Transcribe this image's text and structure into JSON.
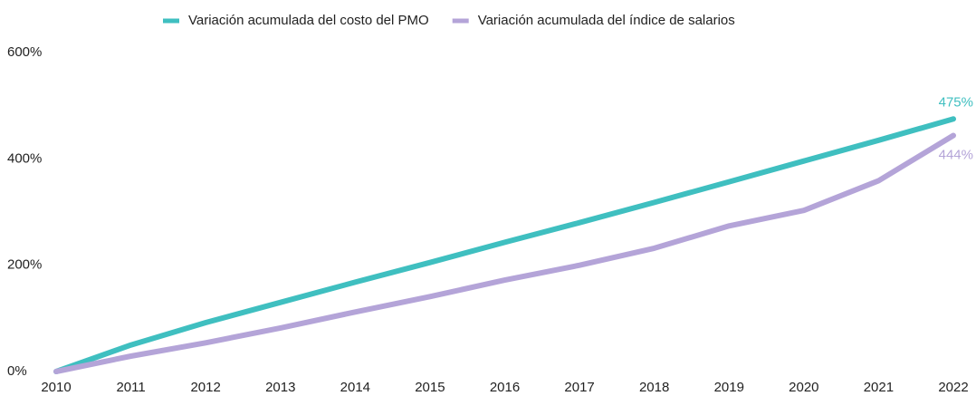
{
  "chart_data": {
    "type": "line",
    "x": [
      2010,
      2011,
      2012,
      2013,
      2014,
      2015,
      2016,
      2017,
      2018,
      2019,
      2020,
      2021,
      2022
    ],
    "xlim": [
      2010,
      2022
    ],
    "xticks": [
      2010,
      2011,
      2012,
      2013,
      2014,
      2015,
      2016,
      2017,
      2018,
      2019,
      2020,
      2021,
      2022
    ],
    "ylim": [
      0,
      600
    ],
    "yticks": [
      {
        "value": 0,
        "label": "0%"
      },
      {
        "value": 200,
        "label": "200%"
      },
      {
        "value": 400,
        "label": "400%"
      },
      {
        "value": 600,
        "label": "600%"
      }
    ],
    "grid": false,
    "legend": "top",
    "series": [
      {
        "name": "Variación acumulada del costo del PMO",
        "color": "#3fbfc0",
        "values": [
          0,
          50,
          92,
          130,
          168,
          205,
          243,
          280,
          318,
          357,
          396,
          435,
          475
        ],
        "value_labels": [
          null,
          null,
          null,
          null,
          null,
          null,
          null,
          null,
          null,
          null,
          null,
          null,
          "475%"
        ]
      },
      {
        "name": "Variación acumulada del índice de salarios",
        "color": "#b4a4d8",
        "values": [
          0,
          29,
          54,
          82,
          112,
          141,
          172,
          200,
          232,
          274,
          303,
          359,
          444
        ],
        "value_labels": [
          null,
          null,
          null,
          null,
          null,
          null,
          null,
          null,
          null,
          null,
          null,
          null,
          "444%"
        ]
      }
    ]
  }
}
